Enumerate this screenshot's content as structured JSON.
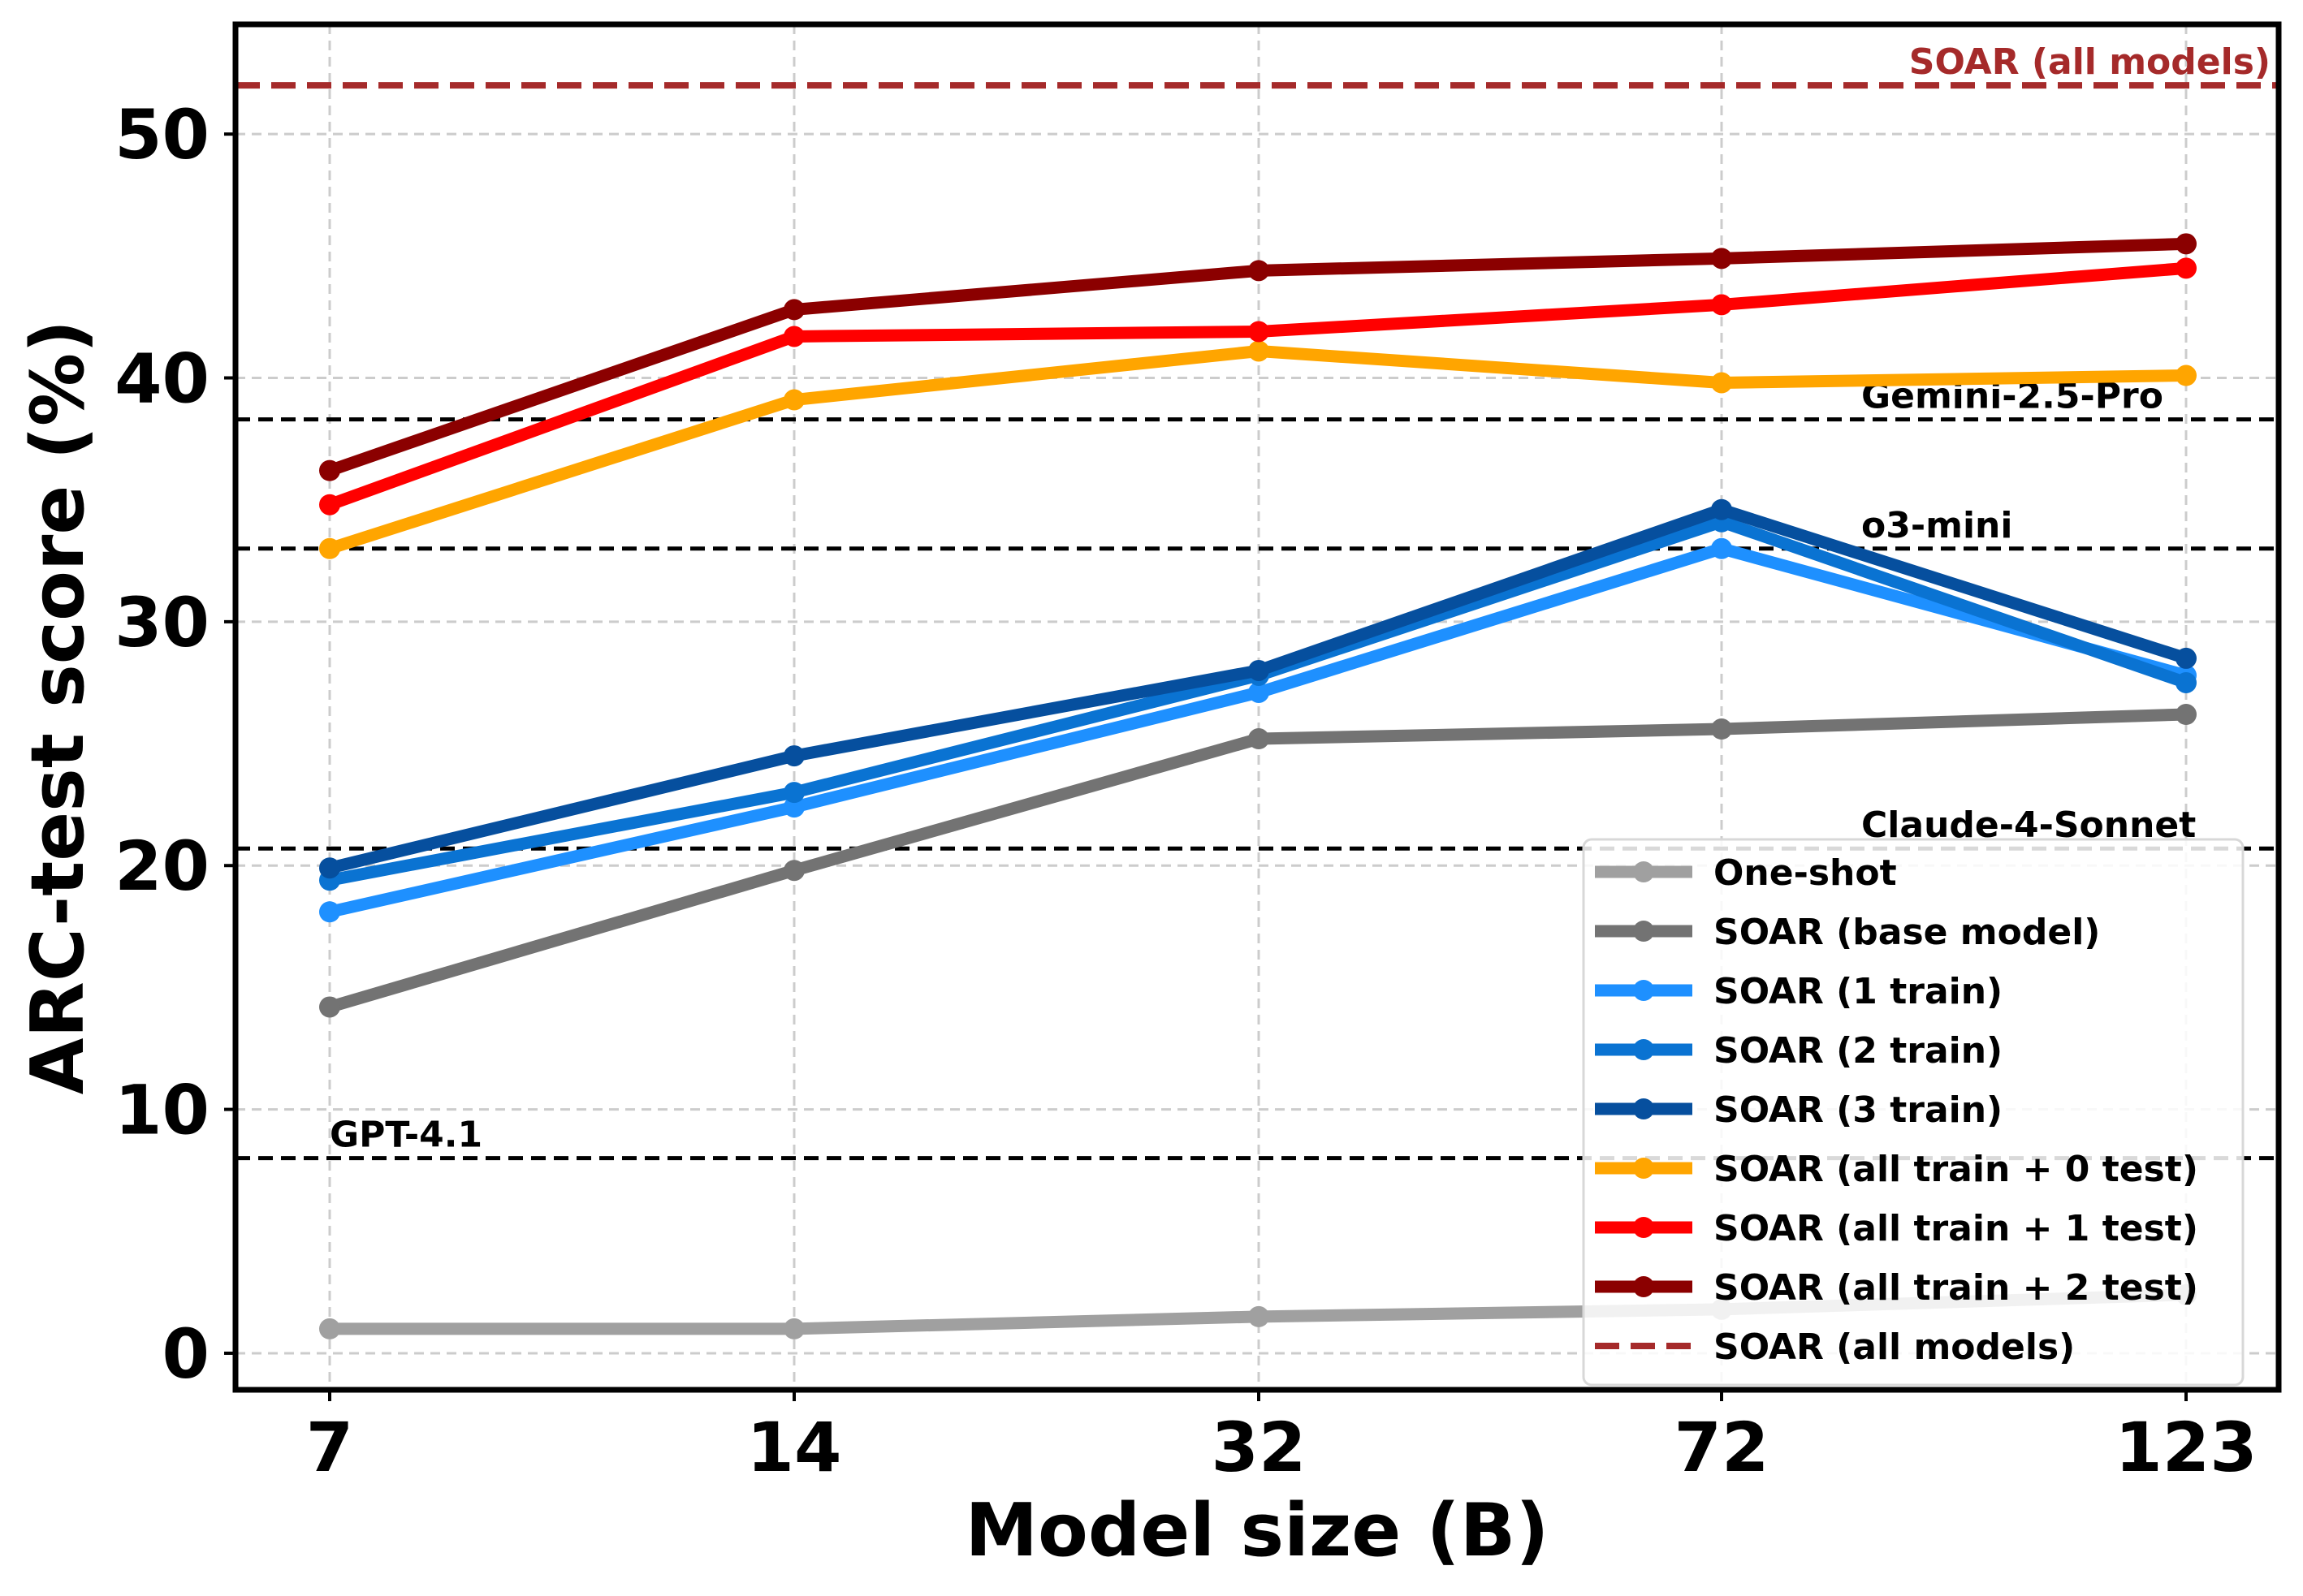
{
  "chart_data": {
    "type": "line",
    "title": "",
    "xlabel": "Model size (B)",
    "ylabel": "ARC-test score (%)",
    "x_tick_labels": [
      "7",
      "14",
      "32",
      "72",
      "123"
    ],
    "y_ticks": [
      0,
      10,
      20,
      30,
      40,
      50
    ],
    "ylim": [
      -1.5,
      54.5
    ],
    "grid": true,
    "legend_position": "bottom-right",
    "series": [
      {
        "name": "One-shot",
        "color": "#a0a0a0",
        "values": [
          1.0,
          1.0,
          1.5,
          1.8,
          2.4
        ]
      },
      {
        "name": "SOAR (base model)",
        "color": "#737373",
        "values": [
          14.2,
          19.8,
          25.2,
          25.6,
          26.2
        ]
      },
      {
        "name": "SOAR (1 train)",
        "color": "#1e90ff",
        "values": [
          18.1,
          22.4,
          27.1,
          33.0,
          27.8
        ]
      },
      {
        "name": "SOAR (2 train)",
        "color": "#0a73d2",
        "values": [
          19.4,
          23.0,
          27.8,
          34.1,
          27.5
        ]
      },
      {
        "name": "SOAR (3 train)",
        "color": "#064f9e",
        "values": [
          19.9,
          24.5,
          28.0,
          34.6,
          28.5
        ]
      },
      {
        "name": "SOAR (all train + 0 test)",
        "color": "#ffa500",
        "values": [
          33.0,
          39.1,
          41.1,
          39.8,
          40.1
        ]
      },
      {
        "name": "SOAR (all train + 1 test)",
        "color": "#ff0000",
        "values": [
          34.8,
          41.7,
          41.9,
          43.0,
          44.5
        ]
      },
      {
        "name": "SOAR (all train + 2 test)",
        "color": "#8b0000",
        "values": [
          36.2,
          42.8,
          44.4,
          44.9,
          45.5
        ]
      }
    ],
    "reference_lines": [
      {
        "name": "SOAR (all models)",
        "value": 52.0,
        "color": "#a52a2a",
        "style": "dashed",
        "in_legend": true
      },
      {
        "name": "Gemini-2.5-Pro",
        "value": 38.3,
        "color": "#000000",
        "style": "dashed",
        "in_legend": false
      },
      {
        "name": "o3-mini",
        "value": 33.0,
        "color": "#000000",
        "style": "dashed",
        "in_legend": false
      },
      {
        "name": "Claude-4-Sonnet",
        "value": 20.7,
        "color": "#000000",
        "style": "dashed",
        "in_legend": false
      },
      {
        "name": "GPT-4.1",
        "value": 8.0,
        "color": "#000000",
        "style": "dashed",
        "in_legend": false
      }
    ]
  }
}
